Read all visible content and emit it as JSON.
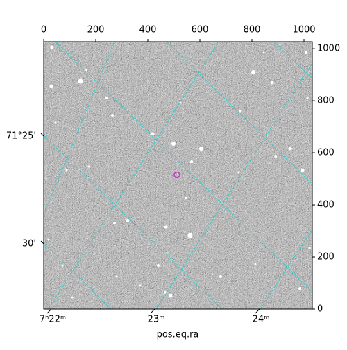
{
  "chart_data": {
    "type": "image",
    "xlabel": "pos.eq.ra",
    "xlim": [
      0,
      1032
    ],
    "ylim": [
      0,
      1027
    ],
    "xticks": [
      0,
      200,
      400,
      600,
      800,
      1000
    ],
    "yticks": [
      0,
      200,
      400,
      600,
      800,
      1000
    ],
    "ra_tick_labels": [
      "7ʰ22ᵐ",
      "23ᵐ",
      "24ᵐ"
    ],
    "dec_tick_labels": [
      "71°25'",
      "30'"
    ],
    "marker": {
      "x": 512,
      "y": 516,
      "color": "#cc33cc"
    },
    "grid_color": "#33cccc"
  }
}
